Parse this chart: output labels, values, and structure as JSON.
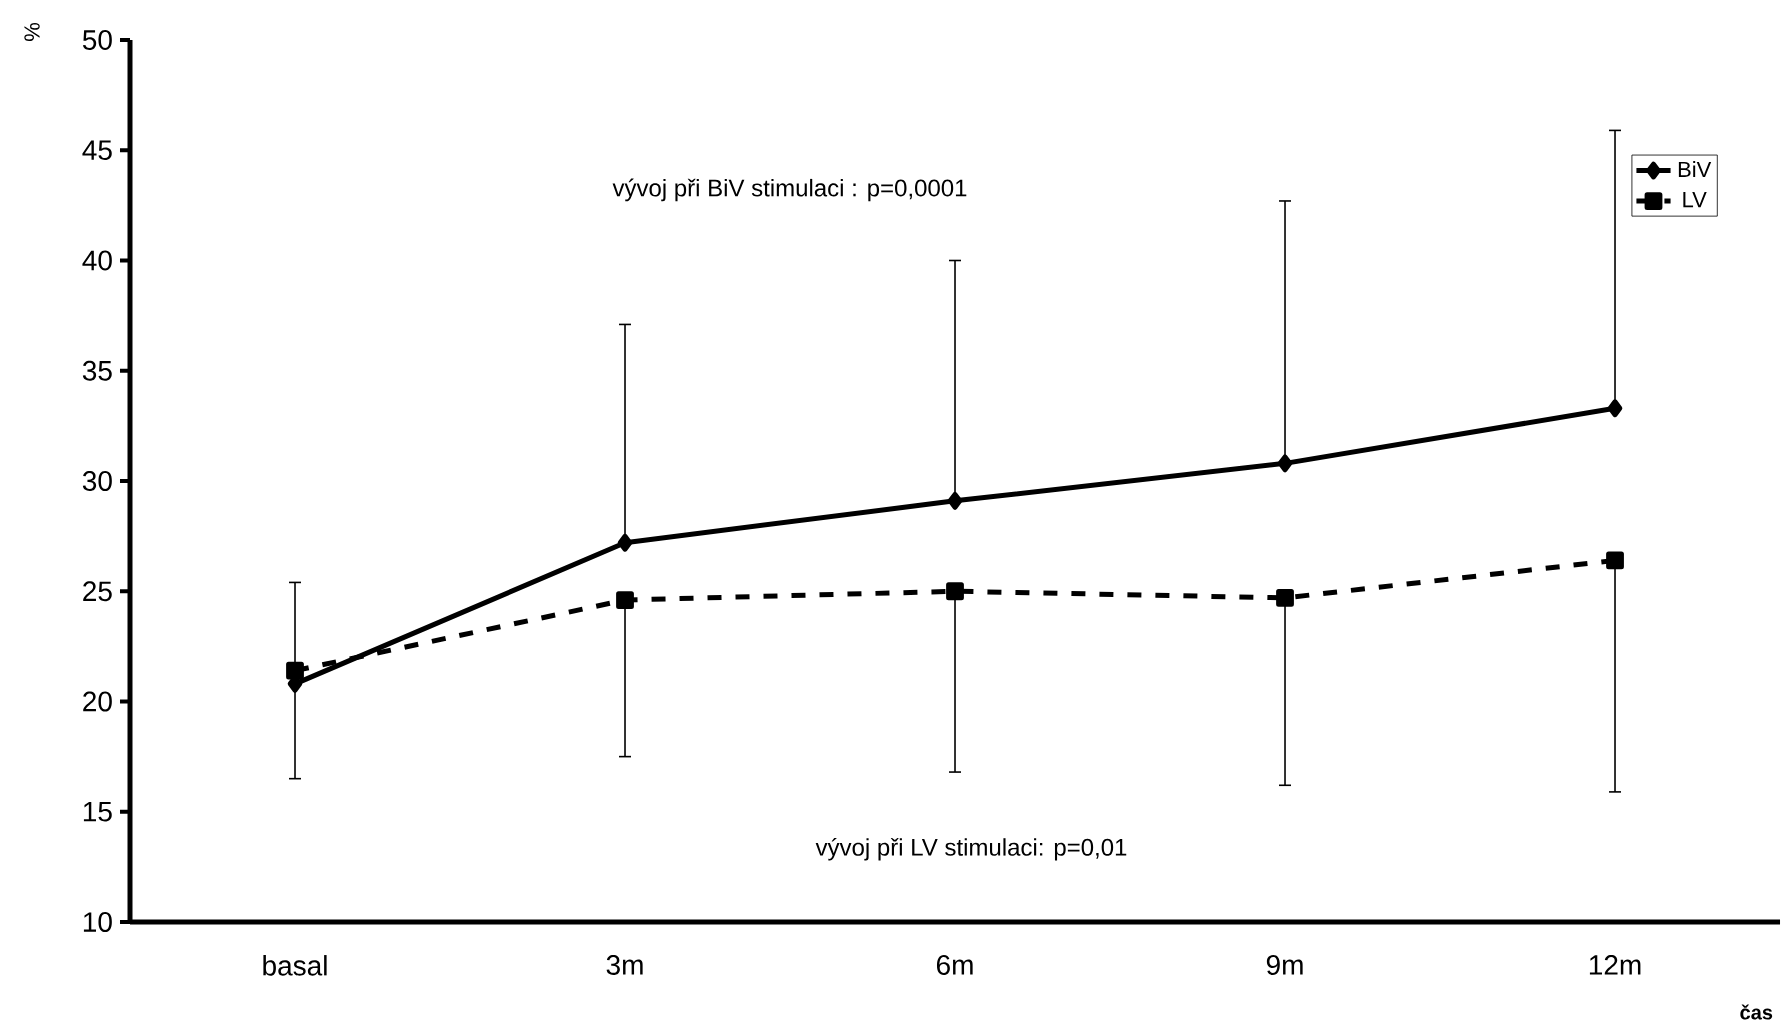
{
  "chart_data": {
    "type": "line",
    "categories": [
      "basal",
      "3m",
      "6m",
      "9m",
      "12m"
    ],
    "series": [
      {
        "name": "BiV",
        "color": "#000000",
        "marker": "diamond",
        "line_style": "solid",
        "values": [
          20.8,
          27.2,
          29.1,
          30.8,
          33.3
        ],
        "errors": [
          [
            20.8,
            25.4
          ],
          [
            27.2,
            37.1
          ],
          [
            29.1,
            40.0
          ],
          [
            30.8,
            42.7
          ],
          [
            33.3,
            45.9
          ]
        ]
      },
      {
        "name": "LV",
        "color": "#000000",
        "marker": "square",
        "line_style": "dashed",
        "values": [
          21.4,
          24.6,
          25.0,
          24.7,
          26.4
        ],
        "errors": [
          [
            16.5,
            21.4
          ],
          [
            17.5,
            24.6
          ],
          [
            16.8,
            25.0
          ],
          [
            16.2,
            24.7
          ],
          [
            15.9,
            26.4
          ]
        ]
      }
    ],
    "ylim": [
      10,
      50
    ],
    "yticks": [
      10,
      15,
      20,
      25,
      30,
      35,
      40,
      45,
      50
    ],
    "ylabel": "%",
    "xlabel": "čas",
    "annotations": [
      "vývoj při BiV stimulaci : p=0,0001",
      "vývoj při LV stimulaci: p=0,01"
    ],
    "legend": "top right",
    "grid": false
  }
}
